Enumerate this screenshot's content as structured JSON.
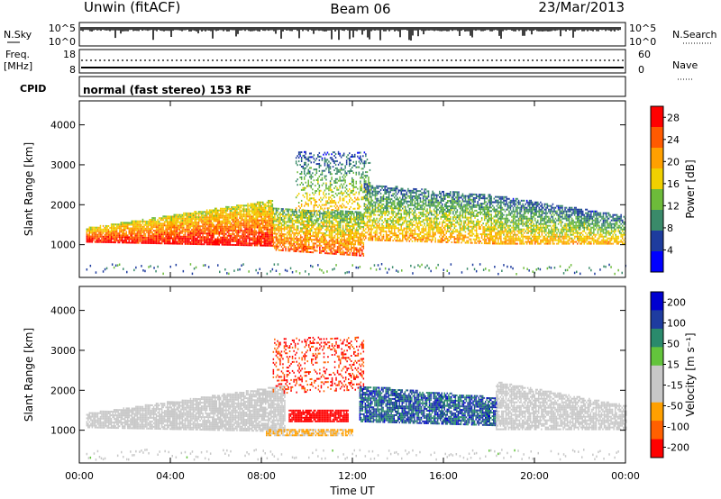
{
  "header": {
    "station": "Unwin (fitACF)",
    "beam": "Beam 06",
    "date": "23/Mar/2013"
  },
  "summary_panels": {
    "nsky": {
      "label": "N.Sky",
      "ticks": [
        "10^5",
        "10^0"
      ]
    },
    "nsearch": {
      "label": "N.Search",
      "ticks": [
        "10^5",
        "10^0"
      ]
    },
    "freq": {
      "label": "Freq.",
      "unit": "[MHz]",
      "ticks": [
        "18",
        "8"
      ]
    },
    "nave": {
      "label": "Nave",
      "ticks": [
        "60",
        "0"
      ]
    },
    "cpid": {
      "label": "CPID",
      "value": "normal (fast stereo) 153 RF"
    }
  },
  "chart_data": [
    {
      "type": "heatmap",
      "title": "Power",
      "ylabel": "Slant Range [km]",
      "xlabel": "Time UT",
      "x_ticks": [
        "00:00",
        "04:00",
        "08:00",
        "12:00",
        "16:00",
        "20:00",
        "00:00"
      ],
      "x_range_hours": [
        0,
        24
      ],
      "y_ticks": [
        1000,
        2000,
        3000,
        4000
      ],
      "ylim": [
        180,
        4600
      ],
      "colorbar": {
        "label": "Power [dB]",
        "ticks": [
          4,
          8,
          12,
          16,
          20,
          24,
          28
        ],
        "range": [
          0,
          30
        ]
      },
      "regions": [
        {
          "t": [
            0.3,
            8.5
          ],
          "r0": [
            1050,
            950
          ],
          "r1": [
            1400,
            2100
          ],
          "level": 22,
          "spread": 7,
          "density": 0.9
        },
        {
          "t": [
            8.5,
            12.5
          ],
          "r0": [
            850,
            700
          ],
          "r1": [
            1900,
            1800
          ],
          "level": 18,
          "spread": 8,
          "density": 0.75
        },
        {
          "t": [
            9.5,
            12.8
          ],
          "r0": [
            1800,
            1900
          ],
          "r1": [
            3300,
            3300
          ],
          "level": 12,
          "spread": 6,
          "density": 0.35
        },
        {
          "t": [
            12.5,
            18.5
          ],
          "r0": [
            1100,
            1000
          ],
          "r1": [
            2500,
            2200
          ],
          "level": 14,
          "spread": 7,
          "density": 0.65
        },
        {
          "t": [
            18.5,
            24
          ],
          "r0": [
            1000,
            1000
          ],
          "r1": [
            2200,
            1700
          ],
          "level": 13,
          "spread": 7,
          "density": 0.7
        }
      ]
    },
    {
      "type": "heatmap",
      "title": "Velocity",
      "ylabel": "Slant Range [km]",
      "xlabel": "Time UT",
      "x_ticks": [
        "00:00",
        "04:00",
        "08:00",
        "12:00",
        "16:00",
        "20:00",
        "00:00"
      ],
      "x_range_hours": [
        0,
        24
      ],
      "y_ticks": [
        1000,
        2000,
        3000,
        4000
      ],
      "ylim": [
        180,
        4600
      ],
      "colorbar": {
        "label": "Velocity [m s⁻¹]",
        "ticks": [
          200,
          100,
          50,
          15,
          -15,
          -50,
          -100,
          -200
        ],
        "range": [
          -250,
          250
        ]
      },
      "regions": [
        {
          "t": [
            0.3,
            9.0
          ],
          "r0": [
            1050,
            950
          ],
          "r1": [
            1400,
            2100
          ],
          "level": -5,
          "spread": 20,
          "density": 0.85
        },
        {
          "t": [
            9.2,
            11.8
          ],
          "r0": [
            1200,
            1200
          ],
          "r1": [
            1500,
            1500
          ],
          "level": -220,
          "spread": 20,
          "density": 0.9
        },
        {
          "t": [
            8.2,
            12.0
          ],
          "r0": [
            850,
            850
          ],
          "r1": [
            1000,
            1000
          ],
          "level": -90,
          "spread": 30,
          "density": 0.8
        },
        {
          "t": [
            8.5,
            12.5
          ],
          "r0": [
            1900,
            2000
          ],
          "r1": [
            3300,
            3300
          ],
          "level": -200,
          "spread": 40,
          "density": 0.25
        },
        {
          "t": [
            12.3,
            18.3
          ],
          "r0": [
            1200,
            1100
          ],
          "r1": [
            2100,
            1800
          ],
          "level": 150,
          "spread": 60,
          "density": 0.8
        },
        {
          "t": [
            18.3,
            24
          ],
          "r0": [
            1000,
            1000
          ],
          "r1": [
            2200,
            1600
          ],
          "level": 0,
          "spread": 14,
          "density": 0.75
        }
      ]
    }
  ],
  "colors": {
    "power_scale": [
      "#0000ff",
      "#1e3c9e",
      "#3a8a6a",
      "#6dbb3a",
      "#f0d000",
      "#ffa000",
      "#ff5a00",
      "#ff0000"
    ],
    "velocity_scale": [
      "#ff0000",
      "#ff6000",
      "#ffa000",
      "#c8c8c8",
      "#c8c8c8",
      "#63c43c",
      "#2a8a6c",
      "#1e3ca0",
      "#0000d0"
    ]
  }
}
